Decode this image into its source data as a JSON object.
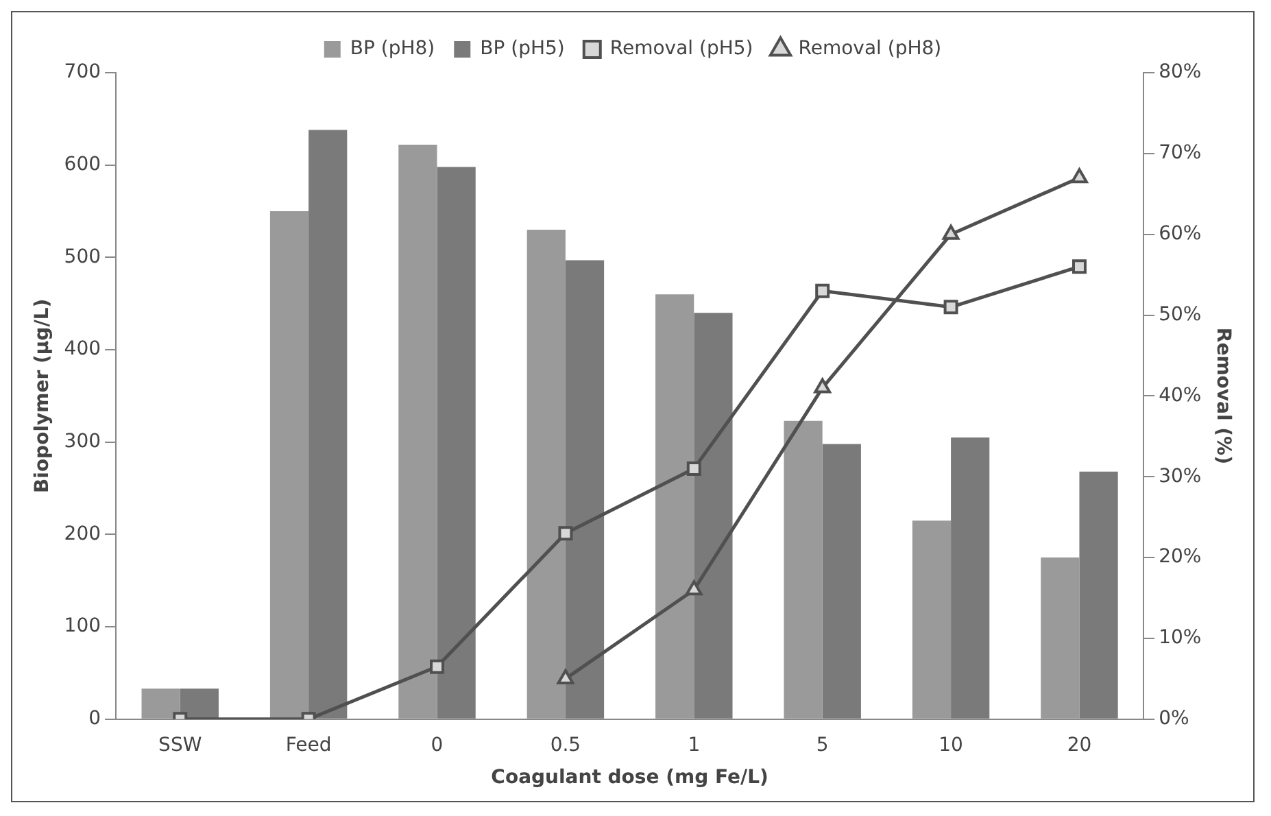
{
  "chart_data": {
    "type": "bar",
    "xlabel": "Coagulant dose (mg Fe/L)",
    "ylabel": "Biopolymer (µg/L)",
    "y2label": "Removal (%)",
    "categories": [
      "SSW",
      "Feed",
      "0",
      "0.5",
      "1",
      "5",
      "10",
      "20"
    ],
    "series": [
      {
        "name": "BP (pH8)",
        "color": "#9a9a9a",
        "values": [
          33,
          550,
          622,
          530,
          460,
          323,
          215,
          175
        ]
      },
      {
        "name": "BP (pH5)",
        "color": "#7a7a7a",
        "values": [
          33,
          638,
          598,
          497,
          440,
          298,
          305,
          268
        ]
      },
      {
        "name": "Removal (pH5)",
        "type": "line",
        "axis": "y2",
        "marker": "square",
        "color": "#505050",
        "values": [
          0,
          0,
          6.5,
          23,
          31,
          53,
          51,
          56
        ]
      },
      {
        "name": "Removal (pH8)",
        "type": "line",
        "axis": "y2",
        "marker": "triangle",
        "color": "#505050",
        "values": [
          null,
          null,
          null,
          5,
          16,
          41,
          60,
          67
        ]
      }
    ],
    "ylim": [
      0,
      700
    ],
    "yticks": [
      0,
      100,
      200,
      300,
      400,
      500,
      600,
      700
    ],
    "y2lim": [
      0,
      80
    ],
    "y2ticks": [
      {
        "value": 0,
        "label": "0%"
      },
      {
        "value": 10,
        "label": "10%"
      },
      {
        "value": 20,
        "label": "20%"
      },
      {
        "value": 30,
        "label": "30%"
      },
      {
        "value": 40,
        "label": "40%"
      },
      {
        "value": 50,
        "label": "50%"
      },
      {
        "value": 60,
        "label": "60%"
      },
      {
        "value": 70,
        "label": "70%"
      },
      {
        "value": 80,
        "label": "80%"
      }
    ],
    "grid": false,
    "legend": "top"
  }
}
